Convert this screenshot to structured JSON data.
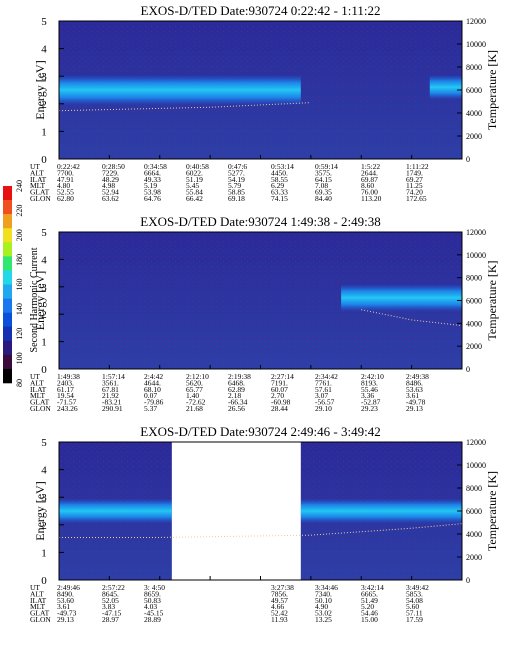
{
  "colorbar": {
    "label": "Second Harmonic Current",
    "ticks": [
      "80",
      "100",
      "120",
      "140",
      "160",
      "180",
      "200",
      "220",
      "240"
    ],
    "colors": [
      "#000000",
      "#3a0a3a",
      "#2a1a80",
      "#1530b0",
      "#0a50d8",
      "#1a78ee",
      "#20a8f0",
      "#20d8e8",
      "#30e870",
      "#a8f020",
      "#f0e020",
      "#f0a020",
      "#f05020",
      "#e81010"
    ]
  },
  "chart_data": [
    {
      "type": "heatmap",
      "title": "EXOS-D/TED   Date:930724   0:22:42 - 1:11:22",
      "ylabel": "Energy [eV]",
      "y2label": "Temperature [K]",
      "ylim": [
        0,
        5
      ],
      "y2lim": [
        0,
        12000
      ],
      "yticks": [
        "0",
        "1",
        "2",
        "3",
        "4",
        "5"
      ],
      "y2ticks": [
        "0",
        "2000",
        "4000",
        "6000",
        "8000",
        "10000",
        "12000"
      ],
      "row_labels": [
        "UT",
        "ALT",
        "ILAT",
        "MLT",
        "GLAT",
        "GLON"
      ],
      "columns": [
        [
          "0:22:42",
          "7700.",
          "47.91",
          "4.80",
          "52.55",
          "62.80"
        ],
        [
          "0:28:50",
          "7229.",
          "48.29",
          "4.98",
          "52.94",
          "63.62"
        ],
        [
          "0:34:58",
          "6664.",
          "49.33",
          "5.19",
          "53.98",
          "64.76"
        ],
        [
          "0:40:58",
          "6022.",
          "51.19",
          "5.45",
          "55.84",
          "66.42"
        ],
        [
          "0:47:6",
          "5277.",
          "54.19",
          "5.79",
          "58.85",
          "69.18"
        ],
        [
          "0:53:14",
          "4450.",
          "58.55",
          "6.29",
          "63.33",
          "74.15"
        ],
        [
          "0:59:14",
          "3575.",
          "64.15",
          "7.08",
          "69.35",
          "84.40"
        ],
        [
          "1:5:22",
          "2644.",
          "69.87",
          "8.60",
          "76.00",
          "113.20"
        ],
        [
          "1:11:22",
          "1749.",
          "69.27",
          "11.25",
          "74.20",
          "172.65"
        ]
      ],
      "bands": [
        {
          "from": 0.0,
          "to": 0.6,
          "center": [
            2.5,
            2.6
          ],
          "width": 0.55
        },
        {
          "from": 0.6,
          "to": 0.92,
          "center": [
            2.5,
            2.5
          ],
          "width": 0.0
        },
        {
          "from": 0.92,
          "to": 1.0,
          "center": [
            2.6,
            2.6
          ],
          "width": 0.45
        }
      ],
      "temperature": [
        4200,
        4300,
        4400,
        4500,
        4700,
        4900,
        null,
        null,
        null
      ]
    },
    {
      "type": "heatmap",
      "title": "EXOS-D/TED   Date:930724   1:49:38 - 2:49:38",
      "ylabel": "Energy [eV]",
      "y2label": "Temperature [K]",
      "ylim": [
        0,
        5
      ],
      "y2lim": [
        0,
        12000
      ],
      "yticks": [
        "0",
        "1",
        "2",
        "3",
        "4",
        "5"
      ],
      "y2ticks": [
        "0",
        "2000",
        "4000",
        "6000",
        "8000",
        "10000",
        "12000"
      ],
      "row_labels": [
        "UT",
        "ALT",
        "ILAT",
        "MLT",
        "GLAT",
        "GLON"
      ],
      "columns": [
        [
          "1:49:38",
          "2403.",
          "61.17",
          "19.54",
          "-71.57",
          "243.26"
        ],
        [
          "1:57:14",
          "3561.",
          "67.81",
          "21.92",
          "-83.21",
          "290.91"
        ],
        [
          "2:4:42",
          "4644.",
          "68.10",
          "0.07",
          "-79.86",
          "5.37"
        ],
        [
          "2:12:10",
          "5620.",
          "65.77",
          "1.40",
          "-72.62",
          "21.68"
        ],
        [
          "2:19:38",
          "6468.",
          "62.89",
          "2.18",
          "-66.34",
          "26.56"
        ],
        [
          "2:27:14",
          "7191.",
          "60.07",
          "2.70",
          "-60.98",
          "28.44"
        ],
        [
          "2:34:42",
          "7761.",
          "57.61",
          "3.07",
          "-56.57",
          "29.10"
        ],
        [
          "2:42:10",
          "8193.",
          "55.46",
          "3.36",
          "-52.87",
          "29.23"
        ],
        [
          "2:49:38",
          "8486.",
          "53.63",
          "3.61",
          "-49.78",
          "29.13"
        ]
      ],
      "bands": [
        {
          "from": 0.0,
          "to": 0.7,
          "center": [
            2.5,
            2.5
          ],
          "width": 0.0
        },
        {
          "from": 0.7,
          "to": 1.0,
          "center": [
            2.6,
            2.6
          ],
          "width": 0.5
        }
      ],
      "temperature": [
        null,
        null,
        null,
        null,
        null,
        null,
        5200,
        4300,
        3800
      ]
    },
    {
      "type": "heatmap",
      "title": "EXOS-D/TED   Date:930724   2:49:46 - 3:49:42",
      "ylabel": "Energy [eV]",
      "y2label": "Temperature [K]",
      "ylim": [
        0,
        5
      ],
      "y2lim": [
        0,
        12000
      ],
      "yticks": [
        "0",
        "1",
        "2",
        "3",
        "4",
        "5"
      ],
      "y2ticks": [
        "0",
        "2000",
        "4000",
        "6000",
        "8000",
        "10000",
        "12000"
      ],
      "row_labels": [
        "UT",
        "ALT",
        "ILAT",
        "MLT",
        "GLAT",
        "GLON"
      ],
      "columns": [
        [
          "2:49:46",
          "8490.",
          "53.60",
          "3.61",
          "-49.73",
          "29.13"
        ],
        [
          "2:57:22",
          "8645.",
          "52.05",
          "3.83",
          "-47.15",
          "28.97"
        ],
        [
          "3: 4:50",
          "8659.",
          "50.83",
          "4.03",
          "-45.15",
          "28.89"
        ],
        [
          "",
          "",
          "",
          "",
          "",
          ""
        ],
        [
          "",
          "",
          "",
          "",
          "",
          ""
        ],
        [
          "3:27:38",
          "7856.",
          "49.57",
          "4.66",
          "52.42",
          "11.93"
        ],
        [
          "3:34:46",
          "7340.",
          "50.10",
          "4.90",
          "53.02",
          "13.25"
        ],
        [
          "3:42:14",
          "6665.",
          "51.49",
          "5.20",
          "54.46",
          "15.00"
        ],
        [
          "3:49:42",
          "5853.",
          "54.08",
          "5.60",
          "57.11",
          "17.59"
        ]
      ],
      "gap": [
        0.28,
        0.6
      ],
      "bands": [
        {
          "from": 0.0,
          "to": 0.28,
          "center": [
            2.5,
            2.5
          ],
          "width": 0.45
        },
        {
          "from": 0.6,
          "to": 1.0,
          "center": [
            2.5,
            2.5
          ],
          "width": 0.45
        }
      ],
      "temperature": [
        3700,
        3700,
        3700,
        null,
        null,
        3900,
        4200,
        4500,
        4900
      ]
    }
  ]
}
